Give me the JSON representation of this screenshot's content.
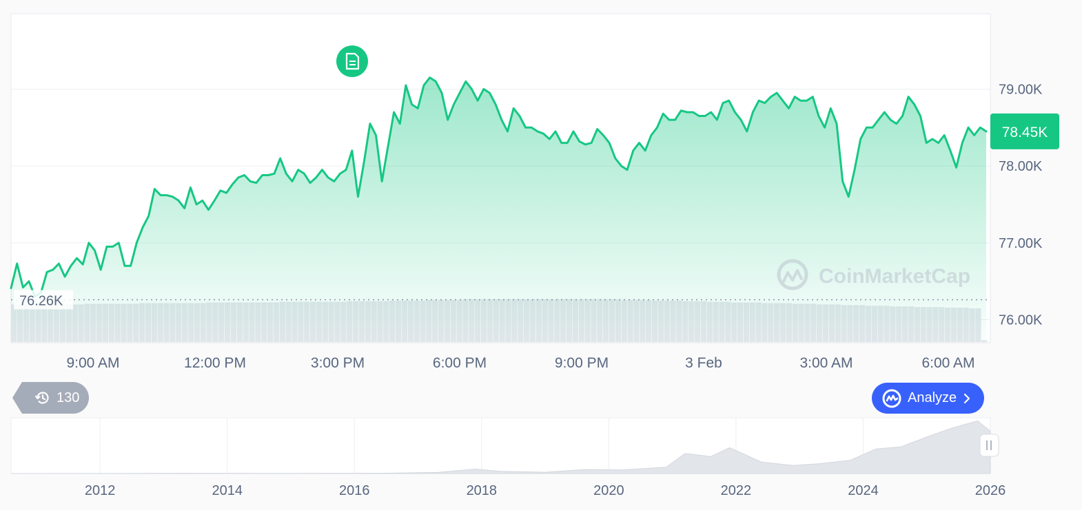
{
  "chart_data": {
    "type": "area",
    "main": {
      "xticks": [
        "9:00 AM",
        "12:00 PM",
        "3:00 PM",
        "6:00 PM",
        "9:00 PM",
        "3 Feb",
        "3:00 AM",
        "6:00 AM"
      ],
      "yticks": [
        "76.00K",
        "77.00K",
        "78.00K",
        "79.00K"
      ],
      "ylim": [
        75700,
        79980
      ],
      "reference_label": "76.26K",
      "reference_value": 76260,
      "current_label": "78.45K",
      "current_value": 78450,
      "grid": true,
      "line_color": "#16c784",
      "price_points": [
        76410,
        76730,
        76420,
        76500,
        76300,
        76350,
        76620,
        76650,
        76730,
        76560,
        76700,
        76800,
        76720,
        77000,
        76900,
        76650,
        76950,
        76950,
        77000,
        76700,
        76700,
        77000,
        77200,
        77350,
        77700,
        77620,
        77620,
        77600,
        77550,
        77450,
        77720,
        77500,
        77550,
        77430,
        77550,
        77680,
        77650,
        77760,
        77850,
        77880,
        77800,
        77780,
        77880,
        77880,
        77900,
        78100,
        77900,
        77800,
        77950,
        77900,
        77780,
        77850,
        77950,
        77850,
        77800,
        77900,
        77950,
        78200,
        77600,
        78050,
        78550,
        78400,
        77800,
        78250,
        78700,
        78550,
        79050,
        78800,
        78750,
        79050,
        79150,
        79100,
        78950,
        78600,
        78800,
        78950,
        79100,
        79000,
        78850,
        79000,
        78950,
        78800,
        78600,
        78450,
        78750,
        78650,
        78500,
        78500,
        78450,
        78420,
        78350,
        78450,
        78300,
        78300,
        78450,
        78320,
        78280,
        78300,
        78480,
        78400,
        78300,
        78100,
        78000,
        77950,
        78200,
        78300,
        78200,
        78400,
        78500,
        78680,
        78600,
        78600,
        78720,
        78700,
        78700,
        78650,
        78650,
        78700,
        78600,
        78820,
        78850,
        78700,
        78600,
        78450,
        78700,
        78850,
        78820,
        78900,
        78950,
        78850,
        78750,
        78900,
        78850,
        78850,
        78900,
        78650,
        78500,
        78750,
        78550,
        77800,
        77600,
        77950,
        78350,
        78500,
        78500,
        78600,
        78700,
        78600,
        78550,
        78650,
        78900,
        78800,
        78650,
        78300,
        78350,
        78300,
        78400,
        78200,
        77980,
        78300,
        78500,
        78400,
        78500,
        78450
      ],
      "volume": [
        58,
        58,
        58,
        58,
        58,
        58,
        58,
        58,
        58,
        58,
        58,
        58,
        59,
        59,
        59,
        59,
        59,
        59,
        59,
        59,
        59,
        60,
        60,
        60,
        60,
        60,
        60,
        60,
        60,
        60,
        60,
        60,
        61,
        61,
        61,
        61,
        61,
        61,
        61,
        61,
        61,
        61,
        61,
        61,
        62,
        62,
        62,
        62,
        62,
        62,
        62,
        62,
        62,
        62,
        62,
        63,
        63,
        63,
        63,
        63,
        63,
        63,
        64,
        64,
        64,
        64,
        64,
        64,
        65,
        65,
        65,
        65,
        65,
        65,
        66,
        66,
        66,
        66,
        66,
        66,
        66,
        66,
        66,
        66,
        66,
        66,
        66,
        66,
        66,
        66,
        66,
        66,
        66,
        66,
        66,
        66,
        66,
        66,
        66,
        66,
        65,
        65,
        65,
        65,
        65,
        64,
        64,
        64,
        64,
        64,
        63,
        63,
        63,
        63,
        62,
        62,
        62,
        62,
        61,
        61,
        61,
        61,
        61,
        60,
        60,
        60,
        60,
        60,
        59,
        59,
        59,
        59,
        58,
        58,
        58,
        58,
        57,
        57,
        57,
        57,
        56,
        56,
        56,
        56,
        55,
        55,
        55,
        55,
        54,
        54,
        54,
        54,
        54,
        53,
        53,
        53,
        53,
        52,
        52,
        3
      ]
    },
    "overview": {
      "xticks": [
        "2012",
        "2014",
        "2016",
        "2018",
        "2020",
        "2022",
        "2024",
        "2026"
      ],
      "x": [
        2010.6,
        2012.0,
        2013.5,
        2015.0,
        2016.5,
        2017.3,
        2017.9,
        2018.3,
        2019.0,
        2019.6,
        2020.2,
        2020.9,
        2021.2,
        2021.6,
        2021.9,
        2022.4,
        2022.9,
        2023.3,
        2023.8,
        2024.2,
        2024.6,
        2025.0,
        2025.4,
        2025.8,
        2026.0
      ],
      "values": [
        0,
        0.1,
        0.6,
        0.3,
        0.8,
        2.5,
        10,
        5,
        3,
        9,
        8,
        14,
        45,
        38,
        58,
        26,
        18,
        22,
        30,
        55,
        60,
        82,
        102,
        118,
        95
      ]
    },
    "watermark": "CoinMarketCap"
  },
  "history_badge": {
    "count": "130"
  },
  "analyze_button": {
    "label": "Analyze"
  }
}
